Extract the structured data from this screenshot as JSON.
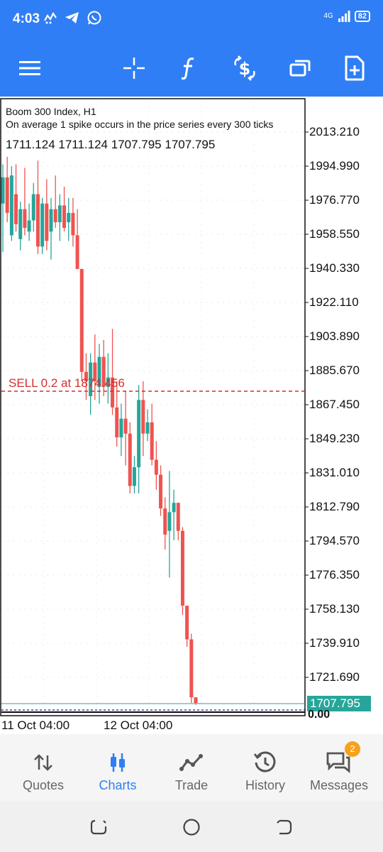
{
  "status_bar": {
    "time": "4:03",
    "network": "4G",
    "battery": "82",
    "icons": [
      "activity-icon",
      "telegram-icon",
      "whatsapp-icon"
    ]
  },
  "toolbar": {
    "icons": [
      "menu-icon",
      "crosshair-icon",
      "indicators-icon",
      "trade-icon",
      "window-icon",
      "new-order-icon"
    ]
  },
  "chart": {
    "symbol": "Boom 300 Index, H1",
    "description": "On average 1 spike occurs in the price series every 300 ticks",
    "ohlc": "1711.124 1711.124 1707.795 1707.795",
    "sell_label": "SELL 0.2 at 1874.456",
    "current_price_label": "1707.795",
    "zero_label": "0.00",
    "x_labels": [
      "11 Oct 04:00",
      "12 Oct 04:00"
    ],
    "y_labels": [
      "2013.210",
      "1994.990",
      "1976.770",
      "1958.550",
      "1940.330",
      "1922.110",
      "1903.890",
      "1885.670",
      "1867.450",
      "1849.230",
      "1831.010",
      "1812.790",
      "1794.570",
      "1776.350",
      "1758.130",
      "1739.910",
      "1721.690"
    ]
  },
  "chart_data": {
    "type": "candlestick",
    "title": "Boom 300 Index, H1",
    "ylim": [
      1704.0,
      2016.0
    ],
    "up_color": "#26a69a",
    "down_color": "#ef5350",
    "sell_order_price": 1874.456,
    "current_price": 1707.795,
    "candles": [
      {
        "o": 1975,
        "h": 1996,
        "l": 1949,
        "c": 1989
      },
      {
        "o": 1989,
        "h": 2000,
        "l": 1965,
        "c": 1970
      },
      {
        "o": 1958,
        "h": 1995,
        "l": 1955,
        "c": 1990
      },
      {
        "o": 1980,
        "h": 1996,
        "l": 1960,
        "c": 1964
      },
      {
        "o": 1956,
        "h": 1976,
        "l": 1950,
        "c": 1972
      },
      {
        "o": 1972,
        "h": 1994,
        "l": 1958,
        "c": 1962
      },
      {
        "o": 1960,
        "h": 1975,
        "l": 1955,
        "c": 1966
      },
      {
        "o": 1966,
        "h": 1986,
        "l": 1960,
        "c": 1980
      },
      {
        "o": 1980,
        "h": 1998,
        "l": 1948,
        "c": 1952
      },
      {
        "o": 1952,
        "h": 1978,
        "l": 1948,
        "c": 1975
      },
      {
        "o": 1975,
        "h": 1988,
        "l": 1950,
        "c": 1955
      },
      {
        "o": 1960,
        "h": 1978,
        "l": 1945,
        "c": 1972
      },
      {
        "o": 1972,
        "h": 1990,
        "l": 1962,
        "c": 1965
      },
      {
        "o": 1965,
        "h": 1980,
        "l": 1955,
        "c": 1974
      },
      {
        "o": 1974,
        "h": 1984,
        "l": 1960,
        "c": 1962
      },
      {
        "o": 1965,
        "h": 1978,
        "l": 1955,
        "c": 1970
      },
      {
        "o": 1970,
        "h": 1978,
        "l": 1952,
        "c": 1958
      },
      {
        "o": 1958,
        "h": 1972,
        "l": 1940,
        "c": 1940
      },
      {
        "o": 1940,
        "h": 1940,
        "l": 1880,
        "c": 1885
      },
      {
        "o": 1885,
        "h": 1895,
        "l": 1870,
        "c": 1880
      },
      {
        "o": 1872,
        "h": 1895,
        "l": 1862,
        "c": 1890
      },
      {
        "o": 1890,
        "h": 1905,
        "l": 1870,
        "c": 1880
      },
      {
        "o": 1877,
        "h": 1900,
        "l": 1868,
        "c": 1893
      },
      {
        "o": 1893,
        "h": 1902,
        "l": 1872,
        "c": 1877
      },
      {
        "o": 1877,
        "h": 1895,
        "l": 1868,
        "c": 1882
      },
      {
        "o": 1882,
        "h": 1908,
        "l": 1862,
        "c": 1866
      },
      {
        "o": 1866,
        "h": 1880,
        "l": 1845,
        "c": 1850
      },
      {
        "o": 1850,
        "h": 1868,
        "l": 1840,
        "c": 1860
      },
      {
        "o": 1860,
        "h": 1875,
        "l": 1835,
        "c": 1852
      },
      {
        "o": 1852,
        "h": 1858,
        "l": 1820,
        "c": 1824
      },
      {
        "o": 1824,
        "h": 1840,
        "l": 1820,
        "c": 1834
      },
      {
        "o": 1834,
        "h": 1878,
        "l": 1820,
        "c": 1870
      },
      {
        "o": 1870,
        "h": 1880,
        "l": 1840,
        "c": 1852
      },
      {
        "o": 1852,
        "h": 1865,
        "l": 1848,
        "c": 1858
      },
      {
        "o": 1858,
        "h": 1868,
        "l": 1835,
        "c": 1838
      },
      {
        "o": 1838,
        "h": 1848,
        "l": 1822,
        "c": 1830
      },
      {
        "o": 1830,
        "h": 1835,
        "l": 1808,
        "c": 1812
      },
      {
        "o": 1812,
        "h": 1818,
        "l": 1790,
        "c": 1798
      },
      {
        "o": 1800,
        "h": 1832,
        "l": 1775,
        "c": 1810
      },
      {
        "o": 1810,
        "h": 1822,
        "l": 1795,
        "c": 1815
      },
      {
        "o": 1815,
        "h": 1815,
        "l": 1795,
        "c": 1800
      },
      {
        "o": 1800,
        "h": 1802,
        "l": 1755,
        "c": 1760
      },
      {
        "o": 1760,
        "h": 1760,
        "l": 1738,
        "c": 1742
      },
      {
        "o": 1742,
        "h": 1745,
        "l": 1708,
        "c": 1711
      },
      {
        "o": 1711,
        "h": 1711,
        "l": 1707,
        "c": 1708
      }
    ]
  },
  "bottom_nav": {
    "items": [
      {
        "label": "Quotes",
        "icon": "quotes-icon"
      },
      {
        "label": "Charts",
        "icon": "charts-icon"
      },
      {
        "label": "Trade",
        "icon": "trade-icon"
      },
      {
        "label": "History",
        "icon": "history-icon"
      },
      {
        "label": "Messages",
        "icon": "messages-icon"
      }
    ],
    "active": "Charts",
    "messages_badge": "2"
  },
  "system_nav": {
    "icons": [
      "recents-icon",
      "home-icon",
      "back-icon"
    ]
  }
}
